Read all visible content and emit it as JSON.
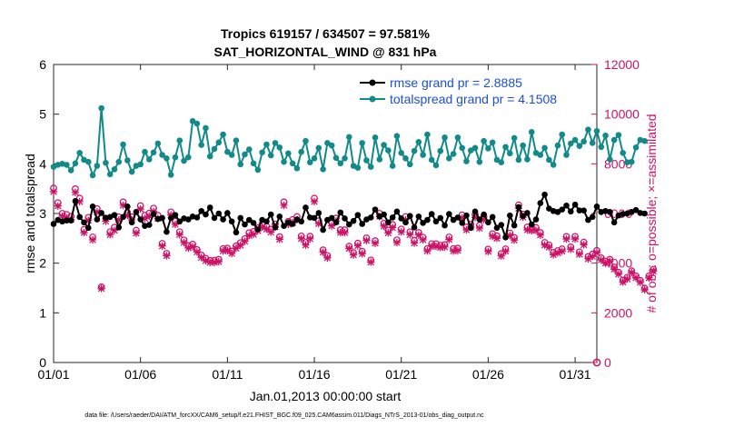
{
  "chart_data": {
    "type": "line",
    "title": "Tropics 619157 / 634507 = 97.581%",
    "subtitle": "SAT_HORIZONTAL_WIND @ 831 hPa",
    "xlabel": "Jan.01,2013 00:00:00 start",
    "ylabel": "rmse and totalspread",
    "ylabel_right": "# of obs: o=possible; ×=assimilated",
    "xlim": [
      1,
      32.25
    ],
    "ylim": [
      0,
      6
    ],
    "ylim_right": [
      0,
      12000
    ],
    "x_ticks": [
      1,
      6,
      11,
      16,
      21,
      26,
      31
    ],
    "x_tick_labels": [
      "01/01",
      "01/06",
      "01/11",
      "01/16",
      "01/21",
      "01/26",
      "01/31"
    ],
    "y_ticks": [
      0,
      1,
      2,
      3,
      4,
      5,
      6
    ],
    "y_ticks_right": [
      0,
      2000,
      4000,
      6000,
      8000,
      10000,
      12000
    ],
    "legend_position": "top-right",
    "series": [
      {
        "name": "rmse grand pr = 2.8885",
        "color": "#000000",
        "marker": "dot",
        "axis": "left",
        "x_start": 1,
        "x_step": 0.25,
        "values": [
          2.79,
          2.87,
          2.84,
          2.86,
          2.86,
          3.25,
          2.93,
          2.82,
          2.71,
          3.14,
          2.88,
          3.01,
          2.91,
          2.93,
          2.97,
          2.72,
          2.93,
          3.14,
          2.82,
          3.03,
          2.88,
          2.75,
          2.77,
          2.99,
          2.89,
          2.91,
          2.63,
          2.91,
          2.97,
          2.84,
          2.9,
          2.88,
          2.94,
          2.92,
          3.05,
          2.98,
          3.12,
          2.91,
          3,
          2.88,
          3.01,
          2.84,
          2.62,
          2.91,
          2.78,
          2.87,
          2.81,
          2.68,
          2.87,
          2.84,
          2.98,
          2.72,
          2.94,
          2.75,
          2.82,
          2.79,
          2.88,
          2.84,
          3.12,
          2.92,
          2.91,
          3.01,
          2.67,
          2.87,
          2.91,
          2.82,
          3.02,
          2.9,
          2.78,
          2.85,
          2.97,
          2.79,
          2.88,
          2.92,
          3.08,
          2.94,
          2.98,
          2.82,
          2.92,
          3.04,
          2.9,
          2.82,
          2.95,
          2.72,
          2.94,
          2.81,
          2.87,
          2.99,
          2.84,
          2.91,
          2.76,
          2.99,
          2.87,
          2.92,
          2.81,
          2.96,
          2.71,
          3.04,
          2.88,
          2.98,
          2.82,
          2.93,
          2.71,
          2.77,
          2.52,
          2.96,
          2.76,
          3.13,
          2.95,
          3.01,
          2.78,
          2.88,
          3.21,
          3.38,
          3.1,
          3.05,
          3.03,
          3.08,
          3.16,
          3.04,
          3.18,
          3.06,
          3.06,
          2.87,
          2.93,
          3.14,
          3.03,
          3.05,
          3.03,
          2.82,
          2.96,
          2.99,
          3,
          3.03,
          3.07,
          3.01,
          3
        ]
      },
      {
        "name": "totalspread grand pr = 4.1508",
        "color": "#138a8a",
        "marker": "dot",
        "axis": "left",
        "x_start": 1,
        "x_step": 0.25,
        "values": [
          3.94,
          3.98,
          4,
          3.98,
          3.87,
          4.01,
          4.22,
          4.08,
          4.04,
          3.77,
          3.96,
          5.12,
          4.02,
          3.79,
          3.89,
          4.04,
          4.39,
          4.07,
          3.84,
          3.96,
          3.99,
          4.24,
          4.09,
          4.23,
          4.41,
          4.18,
          4.11,
          3.78,
          4.13,
          4.47,
          4.06,
          4.13,
          4.86,
          4.81,
          4.38,
          4.72,
          4.15,
          4.3,
          4.43,
          4.59,
          4.24,
          4.18,
          4.47,
          3.99,
          4.19,
          4.29,
          4.01,
          3.88,
          4.23,
          4.39,
          4.17,
          4.42,
          4.33,
          4.04,
          4.21,
          4.01,
          3.91,
          4.24,
          4.46,
          4.03,
          4.11,
          4.32,
          3.89,
          4.42,
          4.37,
          4.12,
          4.01,
          4.11,
          4.54,
          3.96,
          3.92,
          4.42,
          4.07,
          3.94,
          4.53,
          4.09,
          4.38,
          4.27,
          3.96,
          4.56,
          4.22,
          4.11,
          3.99,
          4.26,
          4.44,
          4.18,
          4.59,
          4.08,
          3.97,
          4.26,
          4.53,
          4.11,
          4.2,
          4.53,
          4.32,
          4.05,
          4.27,
          4.32,
          4.04,
          4.46,
          4.31,
          4.43,
          4.08,
          4.03,
          4.34,
          4.21,
          4.52,
          4.08,
          4.37,
          4.09,
          4.64,
          4.22,
          4.18,
          4.32,
          4.08,
          3.98,
          4.37,
          4.59,
          4.18,
          4.41,
          4.48,
          4.36,
          4.45,
          4.69,
          4.42,
          4.66,
          4.34,
          4.57,
          4.09,
          4.48,
          4.58,
          4.22,
          4.03,
          4.04,
          4.33,
          4.48,
          4.46
        ]
      },
      {
        "name": "possible",
        "color": "#cc1166",
        "marker": "circle",
        "axis": "right",
        "x_start": 1,
        "x_step": 0.25,
        "values": [
          7020,
          6430,
          6000,
          5960,
          5880,
          6990,
          6610,
          5350,
          5840,
          5050,
          6190,
          3040,
          5810,
          5260,
          5440,
          5860,
          6460,
          6040,
          5860,
          5320,
          6310,
          5920,
          6010,
          6210,
          5920,
          4790,
          4390,
          6060,
          5680,
          5260,
          4930,
          4700,
          4760,
          4540,
          4320,
          4190,
          4110,
          4110,
          4150,
          4580,
          4600,
          4480,
          4690,
          4820,
          4980,
          5220,
          5270,
          5420,
          5570,
          5480,
          5360,
          5570,
          5060,
          6460,
          5680,
          5750,
          5870,
          5090,
          4830,
          5080,
          6610,
          5700,
          4530,
          4300,
          5610,
          5810,
          5340,
          5340,
          4680,
          4420,
          4800,
          4470,
          5010,
          4120,
          4900,
          6000,
          5600,
          5330,
          5550,
          4930,
          5370,
          5870,
          5260,
          4910,
          5230,
          5040,
          4580,
          4780,
          4780,
          4720,
          4740,
          5050,
          4580,
          4600,
          5940,
          5450,
          5560,
          5960,
          5520,
          5870,
          4560,
          5180,
          5100,
          4380,
          4570,
          5210,
          5030,
          6340,
          5970,
          5450,
          5420,
          5430,
          5230,
          4830,
          4730,
          4430,
          4500,
          4570,
          5070,
          4650,
          5070,
          4450,
          4840,
          4260,
          4360,
          4510,
          4210,
          4080,
          4150,
          3840,
          3630,
          3310,
          3430,
          3690,
          3480,
          3300,
          2990,
          3480,
          3750
        ]
      },
      {
        "name": "assimilated",
        "color": "#cc1166",
        "marker": "cross",
        "axis": "right",
        "x_start": 1,
        "x_step": 0.25,
        "values": [
          6880,
          6300,
          5890,
          5820,
          5750,
          6850,
          6480,
          5230,
          5720,
          4940,
          6060,
          2980,
          5690,
          5150,
          5320,
          5740,
          6330,
          5920,
          5740,
          5210,
          6180,
          5800,
          5890,
          6080,
          5800,
          4690,
          4300,
          5940,
          5560,
          5150,
          4830,
          4610,
          4660,
          4450,
          4230,
          4100,
          4030,
          4030,
          4060,
          4490,
          4510,
          4390,
          4600,
          4720,
          4880,
          5110,
          5160,
          5310,
          5460,
          5370,
          5250,
          5460,
          4960,
          6330,
          5560,
          5630,
          5750,
          4990,
          4730,
          4980,
          6480,
          5590,
          4440,
          4210,
          5500,
          5690,
          5230,
          5230,
          4590,
          4330,
          4700,
          4380,
          4910,
          4040,
          4800,
          5880,
          5490,
          5220,
          5440,
          4830,
          5260,
          5750,
          5150,
          4810,
          5130,
          4940,
          4490,
          4680,
          4680,
          4630,
          4650,
          4950,
          4490,
          4510,
          5820,
          5340,
          5450,
          5840,
          5410,
          5750,
          4470,
          5080,
          5000,
          4290,
          4480,
          5110,
          4930,
          6210,
          5850,
          5340,
          5310,
          5320,
          5130,
          4730,
          4640,
          4340,
          4410,
          4480,
          4970,
          4560,
          4970,
          4360,
          4740,
          4170,
          4270,
          4420,
          4130,
          4000,
          4070,
          3760,
          3560,
          3240,
          3360,
          3620,
          3410,
          3230,
          2930,
          3410,
          3680
        ]
      }
    ],
    "extra_points": [
      {
        "name": "last-possible",
        "x": 32.25,
        "y_right": 0,
        "marker": "circle"
      }
    ],
    "footnote": "data file: /Users/raeder/DAI/ATM_forcXX/CAM6_setup/f.e21.FHIST_BGC.f09_025.CAM6assim.011/Diags_NTrS_2013-01/obs_diag_output.nc"
  }
}
